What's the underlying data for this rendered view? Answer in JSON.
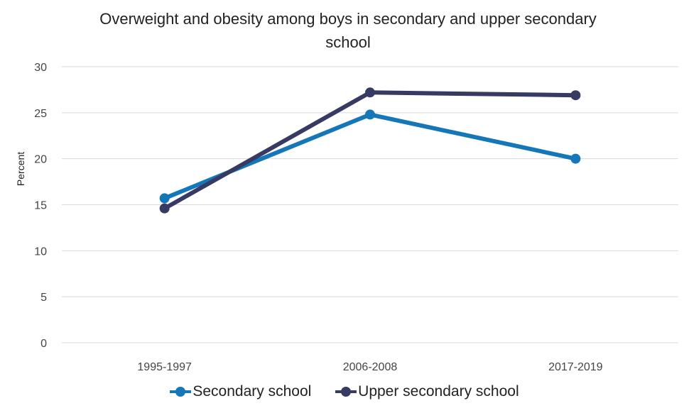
{
  "chart_data": {
    "type": "line",
    "title": "Overweight and obesity among boys in secondary and upper secondary school",
    "title_lines": [
      "Overweight and obesity among boys in secondary and upper secondary",
      "school"
    ],
    "xlabel": "",
    "ylabel": "Percent",
    "categories": [
      "1995-1997",
      "2006-2008",
      "2017-2019"
    ],
    "ylim": [
      0,
      30
    ],
    "yticks": [
      0,
      5,
      10,
      15,
      20,
      25,
      30
    ],
    "grid": true,
    "legend_position": "bottom",
    "series": [
      {
        "name": "Secondary school",
        "color": "#1577b8",
        "values": [
          15.7,
          24.8,
          20.0
        ]
      },
      {
        "name": "Upper secondary school",
        "color": "#373a62",
        "values": [
          14.6,
          27.2,
          26.9
        ]
      }
    ]
  }
}
